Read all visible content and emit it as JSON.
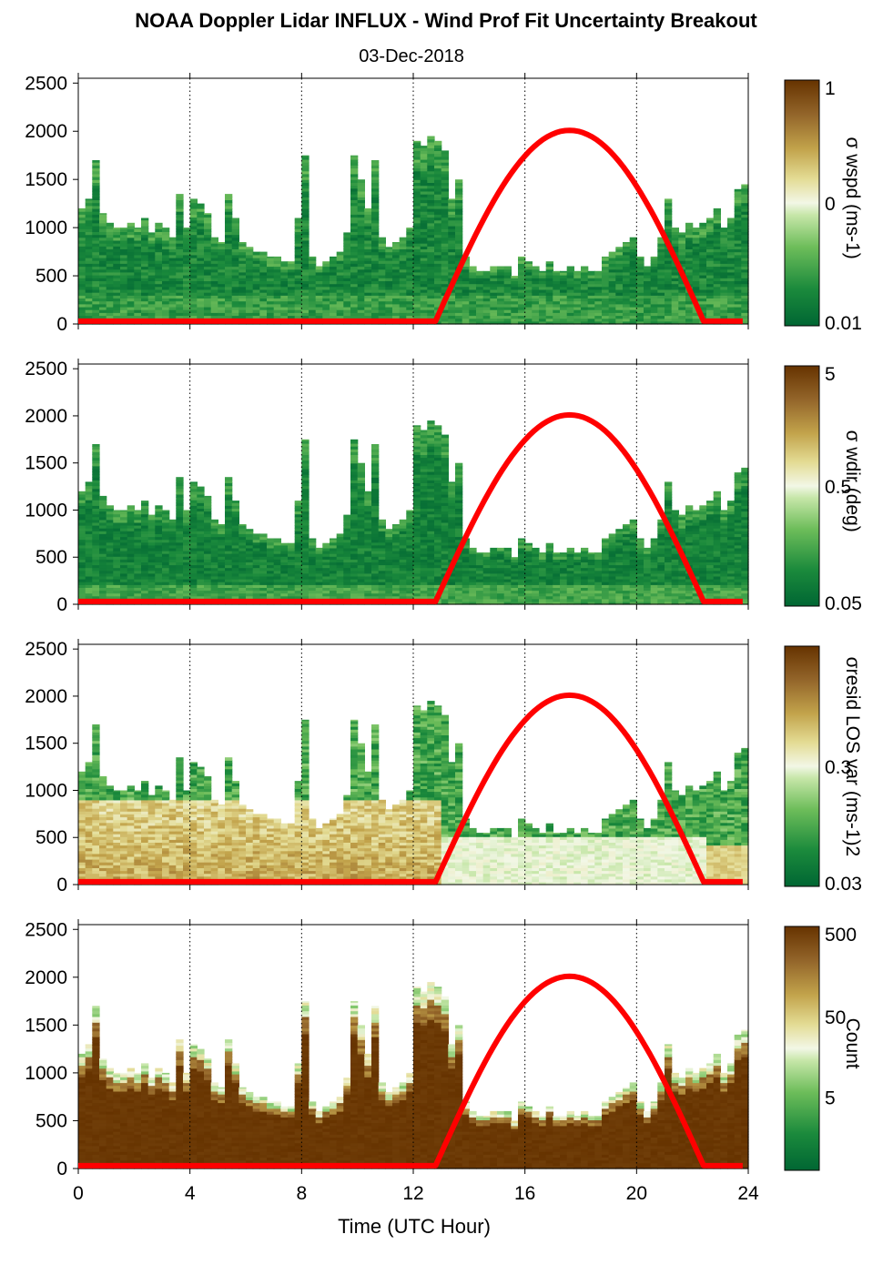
{
  "title": "NOAA Doppler Lidar INFLUX - Wind Prof Fit Uncertainty Breakout",
  "subtitle": "03-Dec-2018",
  "xlabel": "Time (UTC Hour)",
  "colors": {
    "solar_curve": "#ff0000",
    "axis": "#000000",
    "cmap_low": "#006633",
    "cmap_mid": "#f2f7e6",
    "cmap_high": "#663300"
  },
  "chart_data": [
    {
      "type": "heatmap",
      "panel": 1,
      "y_ticks": [
        "0",
        "500",
        "1000",
        "1500",
        "2000",
        "2500"
      ],
      "x_ticks": [
        "0",
        "4",
        "8",
        "12",
        "16",
        "20",
        "24"
      ],
      "xlim": [
        0,
        24
      ],
      "ylim": [
        0,
        2550
      ],
      "dotted_vertical_lines": [
        4,
        8,
        12,
        16,
        20,
        24
      ],
      "colorbar": {
        "tick_labels": [
          "1",
          "0",
          "0.01"
        ],
        "label": "σ wspd (ms-1)",
        "scale": "log",
        "range": [
          0.01,
          1
        ]
      },
      "overlay": {
        "name": "solar elevation curve",
        "start_hour": 12.8,
        "end_hour": 22.4,
        "peak_hour": 17.6,
        "peak_y": 2010,
        "baseline_y": 30
      }
    },
    {
      "type": "heatmap",
      "panel": 2,
      "y_ticks": [
        "0",
        "500",
        "1000",
        "1500",
        "2000",
        "2500"
      ],
      "x_ticks": [
        "0",
        "4",
        "8",
        "12",
        "16",
        "20",
        "24"
      ],
      "xlim": [
        0,
        24
      ],
      "ylim": [
        0,
        2550
      ],
      "dotted_vertical_lines": [
        4,
        8,
        12,
        16,
        20,
        24
      ],
      "colorbar": {
        "tick_labels": [
          "5",
          "0.5",
          "0.05"
        ],
        "label": "σ wdir (deg)",
        "scale": "log",
        "range": [
          0.05,
          5
        ]
      },
      "overlay": {
        "name": "solar elevation curve",
        "start_hour": 12.8,
        "end_hour": 22.4,
        "peak_hour": 17.6,
        "peak_y": 2010,
        "baseline_y": 30
      }
    },
    {
      "type": "heatmap",
      "panel": 3,
      "y_ticks": [
        "0",
        "500",
        "1000",
        "1500",
        "2000",
        "2500"
      ],
      "x_ticks": [
        "0",
        "4",
        "8",
        "12",
        "16",
        "20",
        "24"
      ],
      "xlim": [
        0,
        24
      ],
      "ylim": [
        0,
        2550
      ],
      "dotted_vertical_lines": [
        4,
        8,
        12,
        16,
        20,
        24
      ],
      "colorbar": {
        "tick_labels": [
          "0.3",
          "0.03"
        ],
        "label": "σresid LOS var (ms-1)2",
        "scale": "log",
        "range": [
          0.03,
          3
        ]
      },
      "overlay": {
        "name": "solar elevation curve",
        "start_hour": 12.8,
        "end_hour": 22.4,
        "peak_hour": 17.6,
        "peak_y": 2010,
        "baseline_y": 30
      }
    },
    {
      "type": "heatmap",
      "panel": 4,
      "y_ticks": [
        "0",
        "500",
        "1000",
        "1500",
        "2000",
        "2500"
      ],
      "x_ticks": [
        "0",
        "4",
        "8",
        "12",
        "16",
        "20",
        "24"
      ],
      "xlim": [
        0,
        24
      ],
      "ylim": [
        0,
        2550
      ],
      "dotted_vertical_lines": [
        4,
        8,
        12,
        16,
        20,
        24
      ],
      "colorbar": {
        "tick_labels": [
          "500",
          "50",
          "5"
        ],
        "label": "Count",
        "scale": "log",
        "range": [
          1,
          1000
        ]
      },
      "overlay": {
        "name": "solar elevation curve",
        "start_hour": 12.8,
        "end_hour": 22.4,
        "peak_hour": 17.6,
        "peak_y": 2010,
        "baseline_y": 30
      }
    }
  ],
  "column_tops": [
    [
      0.0,
      1200
    ],
    [
      0.25,
      1300
    ],
    [
      0.5,
      1700
    ],
    [
      0.75,
      1150
    ],
    [
      1.0,
      1050
    ],
    [
      1.25,
      1000
    ],
    [
      1.5,
      1000
    ],
    [
      1.75,
      1050
    ],
    [
      2.0,
      1000
    ],
    [
      2.25,
      1100
    ],
    [
      2.5,
      950
    ],
    [
      2.75,
      1050
    ],
    [
      3.0,
      1000
    ],
    [
      3.25,
      900
    ],
    [
      3.5,
      1350
    ],
    [
      3.75,
      1000
    ],
    [
      4.0,
      1300
    ],
    [
      4.25,
      1250
    ],
    [
      4.5,
      1150
    ],
    [
      4.75,
      900
    ],
    [
      5.0,
      850
    ],
    [
      5.25,
      1350
    ],
    [
      5.5,
      1100
    ],
    [
      5.75,
      850
    ],
    [
      6.0,
      800
    ],
    [
      6.25,
      750
    ],
    [
      6.5,
      750
    ],
    [
      6.75,
      700
    ],
    [
      7.0,
      700
    ],
    [
      7.25,
      650
    ],
    [
      7.5,
      650
    ],
    [
      7.75,
      1100
    ],
    [
      8.0,
      1750
    ],
    [
      8.25,
      700
    ],
    [
      8.5,
      600
    ],
    [
      8.75,
      650
    ],
    [
      9.0,
      700
    ],
    [
      9.25,
      750
    ],
    [
      9.5,
      950
    ],
    [
      9.75,
      1750
    ],
    [
      10.0,
      1500
    ],
    [
      10.25,
      1200
    ],
    [
      10.5,
      1700
    ],
    [
      10.75,
      900
    ],
    [
      11.0,
      800
    ],
    [
      11.25,
      850
    ],
    [
      11.5,
      900
    ],
    [
      11.75,
      1000
    ],
    [
      12.0,
      1900
    ],
    [
      12.25,
      1850
    ],
    [
      12.5,
      1950
    ],
    [
      12.75,
      1900
    ],
    [
      13.0,
      1800
    ],
    [
      13.25,
      1300
    ],
    [
      13.5,
      1500
    ],
    [
      13.75,
      700
    ],
    [
      14.0,
      600
    ],
    [
      14.25,
      550
    ],
    [
      14.5,
      550
    ],
    [
      14.75,
      600
    ],
    [
      15.0,
      600
    ],
    [
      15.25,
      600
    ],
    [
      15.5,
      500
    ],
    [
      15.75,
      700
    ],
    [
      16.0,
      650
    ],
    [
      16.25,
      600
    ],
    [
      16.5,
      550
    ],
    [
      16.75,
      650
    ],
    [
      17.0,
      550
    ],
    [
      17.25,
      550
    ],
    [
      17.5,
      600
    ],
    [
      17.75,
      550
    ],
    [
      18.0,
      600
    ],
    [
      18.25,
      550
    ],
    [
      18.5,
      550
    ],
    [
      18.75,
      700
    ],
    [
      19.0,
      750
    ],
    [
      19.25,
      800
    ],
    [
      19.5,
      850
    ],
    [
      19.75,
      900
    ],
    [
      20.0,
      700
    ],
    [
      20.25,
      600
    ],
    [
      20.5,
      700
    ],
    [
      20.75,
      900
    ],
    [
      21.0,
      1300
    ],
    [
      21.25,
      1000
    ],
    [
      21.5,
      950
    ],
    [
      21.75,
      1050
    ],
    [
      22.0,
      1000
    ],
    [
      22.25,
      1050
    ],
    [
      22.5,
      1100
    ],
    [
      22.75,
      1200
    ],
    [
      23.0,
      1000
    ],
    [
      23.25,
      1100
    ],
    [
      23.5,
      1400
    ],
    [
      23.75,
      1450
    ]
  ]
}
